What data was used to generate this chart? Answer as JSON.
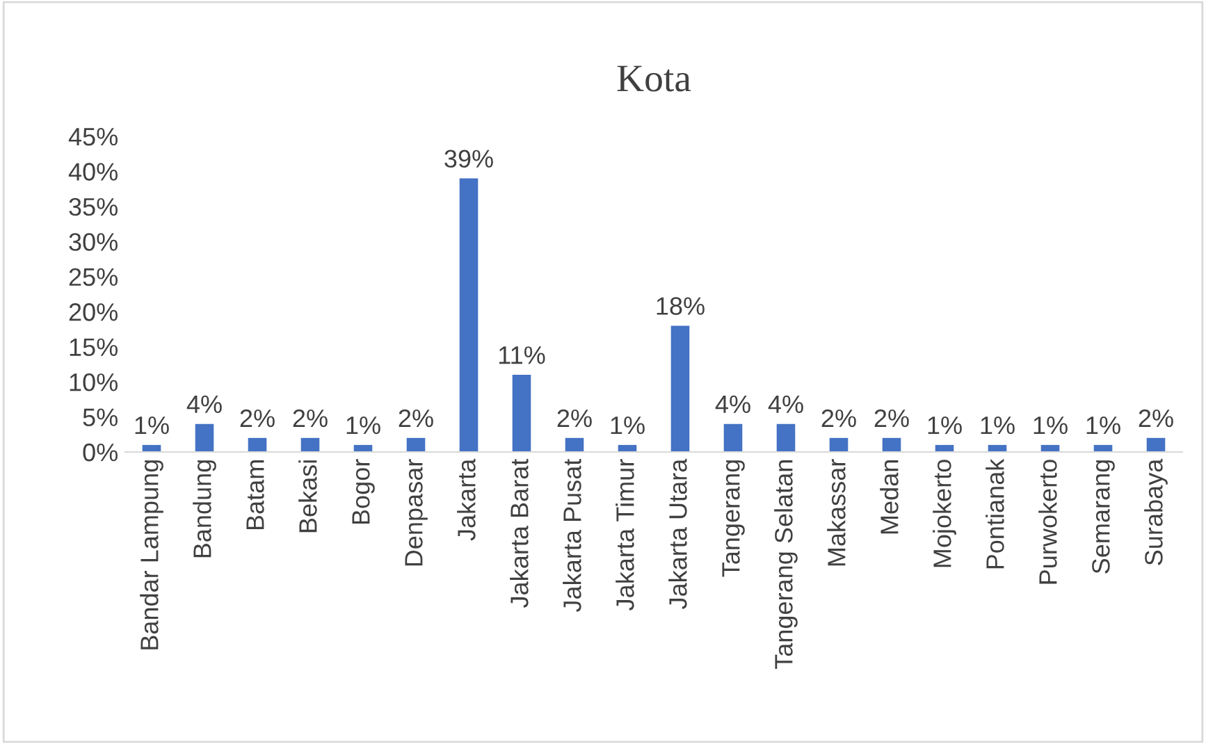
{
  "chart_data": {
    "type": "bar",
    "title": "Kota",
    "categories": [
      "Bandar Lampung",
      "Bandung",
      "Batam",
      "Bekasi",
      "Bogor",
      "Denpasar",
      "Jakarta",
      "Jakarta Barat",
      "Jakarta Pusat",
      "Jakarta Timur",
      "Jakarta Utara",
      "Tangerang",
      "Tangerang Selatan",
      "Makassar",
      "Medan",
      "Mojokerto",
      "Pontianak",
      "Purwokerto",
      "Semarang",
      "Surabaya"
    ],
    "values": [
      1,
      4,
      2,
      2,
      1,
      2,
      39,
      11,
      2,
      1,
      18,
      4,
      4,
      2,
      2,
      1,
      1,
      1,
      1,
      2
    ],
    "value_labels": [
      "1%",
      "4%",
      "2%",
      "2%",
      "1%",
      "2%",
      "39%",
      "11%",
      "2%",
      "1%",
      "18%",
      "4%",
      "4%",
      "2%",
      "2%",
      "1%",
      "1%",
      "1%",
      "1%",
      "2%"
    ],
    "color": "#4472c4",
    "ylim": [
      0,
      45
    ],
    "yticks": [
      {
        "value": 0,
        "label": "0%"
      },
      {
        "value": 5,
        "label": "5%"
      },
      {
        "value": 10,
        "label": "10%"
      },
      {
        "value": 15,
        "label": "15%"
      },
      {
        "value": 20,
        "label": "20%"
      },
      {
        "value": 25,
        "label": "25%"
      },
      {
        "value": 30,
        "label": "30%"
      },
      {
        "value": 35,
        "label": "35%"
      },
      {
        "value": 40,
        "label": "40%"
      },
      {
        "value": 45,
        "label": "45%"
      }
    ],
    "grid": false
  }
}
